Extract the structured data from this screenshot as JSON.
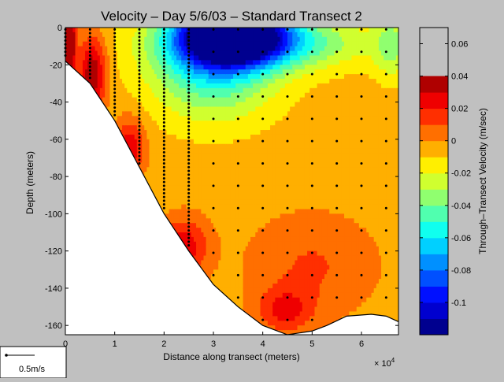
{
  "chart_data": {
    "type": "heatmap",
    "title": "Velocity – Day 5/6/03 – Standard Transect 2",
    "xlabel": "Distance along transect (meters)",
    "xlabel_multiplier": "× 10",
    "xlabel_multiplier_exp": "4",
    "ylabel": "Depth (meters)",
    "colorbar_label": "Through–Transect Velocity (m/sec)",
    "xlim": [
      0,
      6.75
    ],
    "ylim": [
      -165,
      0
    ],
    "xticks": [
      0,
      1,
      2,
      3,
      4,
      5,
      6
    ],
    "yticks": [
      0,
      -20,
      -40,
      -60,
      -80,
      -100,
      -120,
      -140,
      -160
    ],
    "clim": [
      -0.12,
      0.07
    ],
    "cticks": [
      0.06,
      0.04,
      0.02,
      0,
      -0.02,
      -0.04,
      -0.06,
      -0.08,
      -0.1
    ],
    "contour_levels": [
      -0.12,
      -0.11,
      -0.1,
      -0.09,
      -0.08,
      -0.07,
      -0.06,
      -0.05,
      -0.04,
      -0.03,
      -0.02,
      -0.01,
      0,
      0.01,
      0.02,
      0.03,
      0.04,
      0.05,
      0.06,
      0.07
    ],
    "level_colors": [
      "#00008f",
      "#0000cf",
      "#0010ff",
      "#0050ff",
      "#0090ff",
      "#00d0ff",
      "#10ffef",
      "#50ffaf",
      "#90ff6f",
      "#d0ff2f",
      "#ffef00",
      "#ffaf00",
      "#ff6f00",
      "#ff2f00",
      "#ef0000",
      "#af0000"
    ],
    "bottom_profile": [
      [
        0,
        -18
      ],
      [
        0.5,
        -30
      ],
      [
        1,
        -50
      ],
      [
        1.5,
        -75
      ],
      [
        2,
        -100
      ],
      [
        2.5,
        -120
      ],
      [
        3,
        -138
      ],
      [
        3.5,
        -150
      ],
      [
        4,
        -160
      ],
      [
        4.5,
        -165
      ],
      [
        5,
        -163
      ],
      [
        5.3,
        -160
      ],
      [
        5.7,
        -155
      ],
      [
        6.2,
        -154
      ],
      [
        6.5,
        -155
      ],
      [
        6.75,
        -158
      ]
    ],
    "stations": [
      0,
      0.5,
      1,
      1.5,
      2,
      2.5,
      3,
      3.5,
      4,
      4.5,
      5,
      5.5,
      6,
      6.5
    ],
    "sample_depth_step": 2,
    "scale_vector_label": "0.5m/s"
  }
}
